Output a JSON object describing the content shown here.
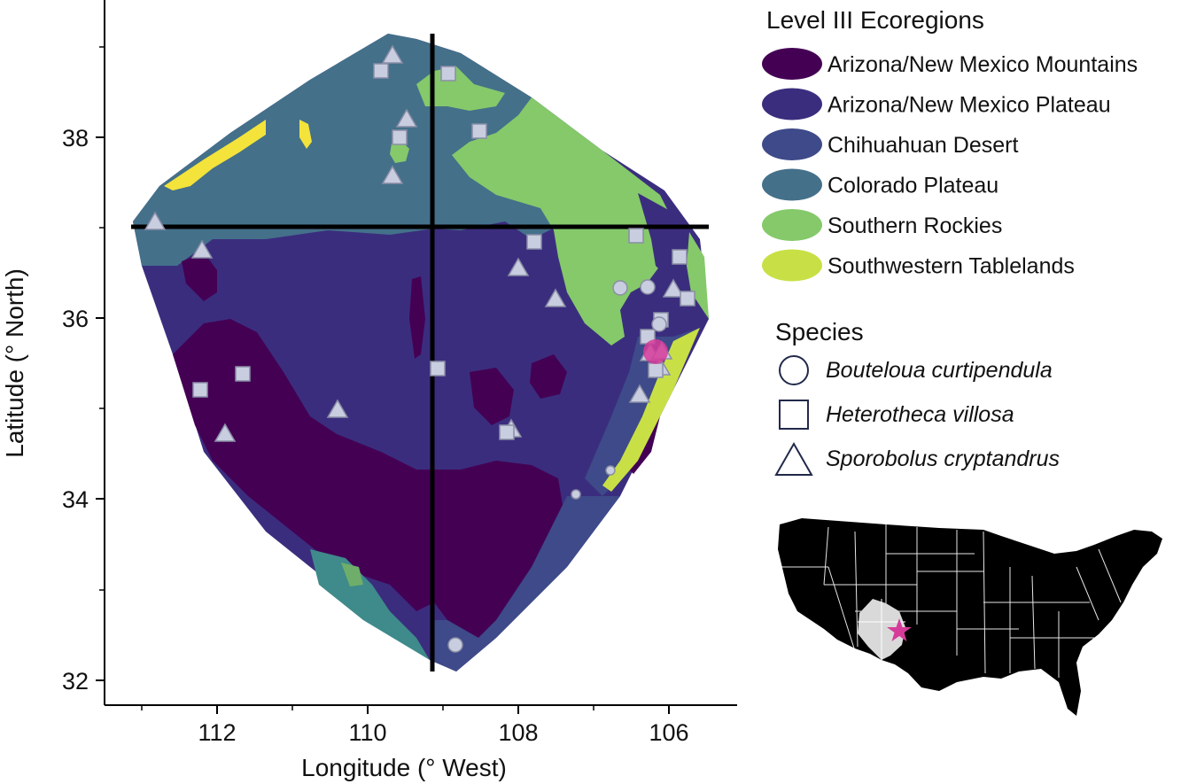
{
  "map": {
    "xlabel": "Longitude (° West)",
    "ylabel": "Latitude (° North)",
    "x_ticks": [
      "112",
      "110",
      "108",
      "106"
    ],
    "y_ticks": [
      "38",
      "36",
      "34",
      "32"
    ],
    "divider_lines": {
      "longitude": "109.0 W",
      "latitude": "37.0 N"
    }
  },
  "legend": {
    "ecoregion_title": "Level III Ecoregions",
    "ecoregions": [
      {
        "label": "Arizona/New Mexico Mountains",
        "color": "#440154"
      },
      {
        "label": "Arizona/New Mexico Plateau",
        "color": "#3b2d7e"
      },
      {
        "label": "Chihuahuan Desert",
        "color": "#3e4a89"
      },
      {
        "label": "Colorado Plateau",
        "color": "#44708a"
      },
      {
        "label": "Southern Rockies",
        "color": "#85c96a"
      },
      {
        "label": "Southwestern Tablelands",
        "color": "#c8e045"
      }
    ],
    "species_title": "Species",
    "species": [
      {
        "label": "Bouteloua curtipendula",
        "shape": "circle"
      },
      {
        "label": "Heterotheca villosa",
        "shape": "square"
      },
      {
        "label": "Sporobolus cryptandrus",
        "shape": "triangle"
      }
    ]
  },
  "colors": {
    "point_fill": "#c9cde0",
    "point_stroke": "#8a8ea6",
    "highlight_star": "#d63b9a",
    "colorado_plateau_teal": "#3f8a8b",
    "yellow_patch": "#f3e33b"
  },
  "inset": {
    "description_icon": "us-map-inset-icon",
    "highlight": "star"
  }
}
